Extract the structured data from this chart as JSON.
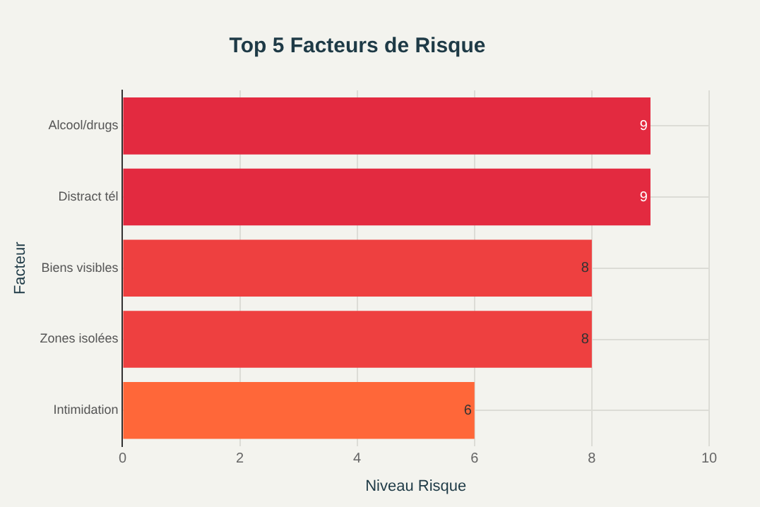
{
  "chart_data": {
    "type": "bar",
    "orientation": "horizontal",
    "title": "Top 5 Facteurs de Risque",
    "xlabel": "Niveau Risque",
    "ylabel": "Facteur",
    "categories": [
      "Alcool/drugs",
      "Distract tél",
      "Biens visibles",
      "Zones isolées",
      "Intimidation"
    ],
    "values": [
      9,
      9,
      8,
      8,
      6
    ],
    "colors": [
      "#e32a40",
      "#e32a40",
      "#ee4040",
      "#ee4040",
      "#ff6739"
    ],
    "xlim": [
      0,
      10
    ],
    "xticks": [
      0,
      2,
      4,
      6,
      8,
      10
    ],
    "grid": true,
    "data_labels": true
  }
}
